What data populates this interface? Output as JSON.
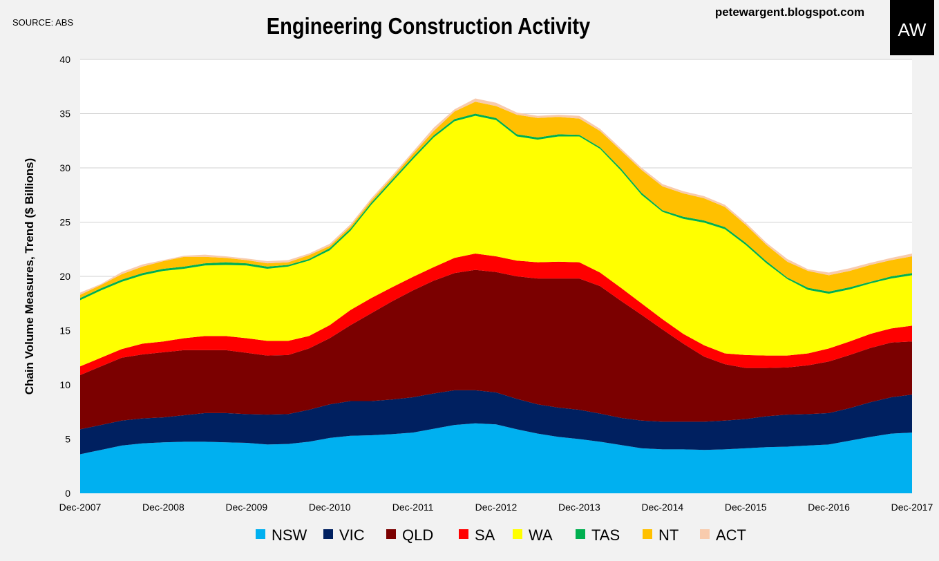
{
  "header": {
    "source": "SOURCE: ABS",
    "title": "Engineering Construction Activity",
    "blog": "petewargent.blogspot.com",
    "logo_text": "AW"
  },
  "chart_data": {
    "type": "area",
    "stacked": true,
    "title": "Engineering Construction Activity",
    "ylabel": "Chain Volume Measures, Trend ($ Billions)",
    "xlabel": "",
    "frequency": "quarterly",
    "x_ticks": [
      "Dec-2007",
      "Dec-2008",
      "Dec-2009",
      "Dec-2010",
      "Dec-2011",
      "Dec-2012",
      "Dec-2013",
      "Dec-2014",
      "Dec-2015",
      "Dec-2016",
      "Dec-2017"
    ],
    "y_ticks": [
      "0",
      "5",
      "10",
      "15",
      "20",
      "25",
      "30",
      "35",
      "40"
    ],
    "ylim": [
      0,
      40
    ],
    "grid": true,
    "legend": "bottom",
    "series": [
      {
        "name": "NSW",
        "color": "#00b0f0",
        "values": [
          3.6,
          4.0,
          4.4,
          4.6,
          4.7,
          4.75,
          4.75,
          4.7,
          4.65,
          4.5,
          4.55,
          4.75,
          5.1,
          5.3,
          5.35,
          5.45,
          5.6,
          5.95,
          6.3,
          6.45,
          6.35,
          5.9,
          5.5,
          5.2,
          5.0,
          4.75,
          4.45,
          4.15,
          4.05,
          4.05,
          4.0,
          4.05,
          4.15,
          4.25,
          4.3,
          4.4,
          4.5,
          4.85,
          5.2,
          5.5,
          5.6
        ]
      },
      {
        "name": "VIC",
        "color": "#002060",
        "values": [
          2.3,
          2.3,
          2.3,
          2.3,
          2.3,
          2.45,
          2.65,
          2.7,
          2.65,
          2.75,
          2.75,
          2.95,
          3.1,
          3.2,
          3.15,
          3.2,
          3.25,
          3.25,
          3.2,
          3.05,
          2.95,
          2.8,
          2.7,
          2.7,
          2.7,
          2.6,
          2.5,
          2.55,
          2.55,
          2.55,
          2.6,
          2.65,
          2.7,
          2.85,
          2.95,
          2.9,
          2.9,
          3.0,
          3.2,
          3.35,
          3.5
        ]
      },
      {
        "name": "QLD",
        "color": "#7b0000",
        "values": [
          5.0,
          5.4,
          5.8,
          5.9,
          6.0,
          6.0,
          5.8,
          5.8,
          5.65,
          5.45,
          5.45,
          5.65,
          6.1,
          7.0,
          8.1,
          9.05,
          9.85,
          10.4,
          10.8,
          11.1,
          11.1,
          11.3,
          11.6,
          11.9,
          12.1,
          11.75,
          10.8,
          9.75,
          8.5,
          7.2,
          6.0,
          5.2,
          4.7,
          4.45,
          4.35,
          4.5,
          4.75,
          4.9,
          5.0,
          5.05,
          4.9
        ]
      },
      {
        "name": "SA",
        "color": "#ff0000",
        "values": [
          0.8,
          0.8,
          0.8,
          1.0,
          1.0,
          1.1,
          1.3,
          1.3,
          1.35,
          1.35,
          1.3,
          1.15,
          1.2,
          1.4,
          1.4,
          1.3,
          1.25,
          1.25,
          1.4,
          1.5,
          1.45,
          1.45,
          1.5,
          1.55,
          1.5,
          1.25,
          1.2,
          1.05,
          0.95,
          0.9,
          1.05,
          1.0,
          1.2,
          1.15,
          1.1,
          1.1,
          1.2,
          1.25,
          1.3,
          1.3,
          1.45
        ]
      },
      {
        "name": "WA",
        "color": "#ffff00",
        "values": [
          6.1,
          6.2,
          6.2,
          6.3,
          6.5,
          6.4,
          6.5,
          6.55,
          6.7,
          6.65,
          6.85,
          6.95,
          6.9,
          7.3,
          8.6,
          9.7,
          10.85,
          11.95,
          12.6,
          12.7,
          12.55,
          11.45,
          11.3,
          11.55,
          11.6,
          11.4,
          10.8,
          10.0,
          9.9,
          10.6,
          11.3,
          11.45,
          10.15,
          8.5,
          7.05,
          5.85,
          5.05,
          4.8,
          4.65,
          4.6,
          4.65
        ]
      },
      {
        "name": "TAS",
        "color": "#00b050",
        "values": [
          0.2,
          0.2,
          0.2,
          0.2,
          0.2,
          0.2,
          0.2,
          0.25,
          0.2,
          0.2,
          0.15,
          0.15,
          0.2,
          0.2,
          0.2,
          0.2,
          0.2,
          0.2,
          0.2,
          0.2,
          0.2,
          0.2,
          0.2,
          0.2,
          0.15,
          0.15,
          0.2,
          0.2,
          0.15,
          0.2,
          0.2,
          0.2,
          0.2,
          0.2,
          0.15,
          0.2,
          0.2,
          0.2,
          0.15,
          0.2,
          0.2
        ]
      },
      {
        "name": "NT",
        "color": "#ffc000",
        "values": [
          0.3,
          0.3,
          0.5,
          0.6,
          0.7,
          0.9,
          0.6,
          0.4,
          0.3,
          0.3,
          0.25,
          0.35,
          0.2,
          0.2,
          0.2,
          0.2,
          0.3,
          0.4,
          0.7,
          1.1,
          1.1,
          1.8,
          1.8,
          1.6,
          1.5,
          1.5,
          1.65,
          2.1,
          2.2,
          2.15,
          2.05,
          1.85,
          1.65,
          1.5,
          1.45,
          1.55,
          1.5,
          1.5,
          1.55,
          1.5,
          1.55
        ]
      },
      {
        "name": "ACT",
        "color": "#f8cbad",
        "values": [
          0.2,
          0.1,
          0.2,
          0.2,
          0.1,
          0.1,
          0.2,
          0.15,
          0.15,
          0.2,
          0.2,
          0.15,
          0.2,
          0.2,
          0.2,
          0.2,
          0.2,
          0.3,
          0.2,
          0.3,
          0.3,
          0.2,
          0.2,
          0.2,
          0.25,
          0.2,
          0.2,
          0.2,
          0.2,
          0.2,
          0.2,
          0.2,
          0.2,
          0.2,
          0.25,
          0.15,
          0.25,
          0.25,
          0.2,
          0.2,
          0.25
        ]
      }
    ]
  }
}
